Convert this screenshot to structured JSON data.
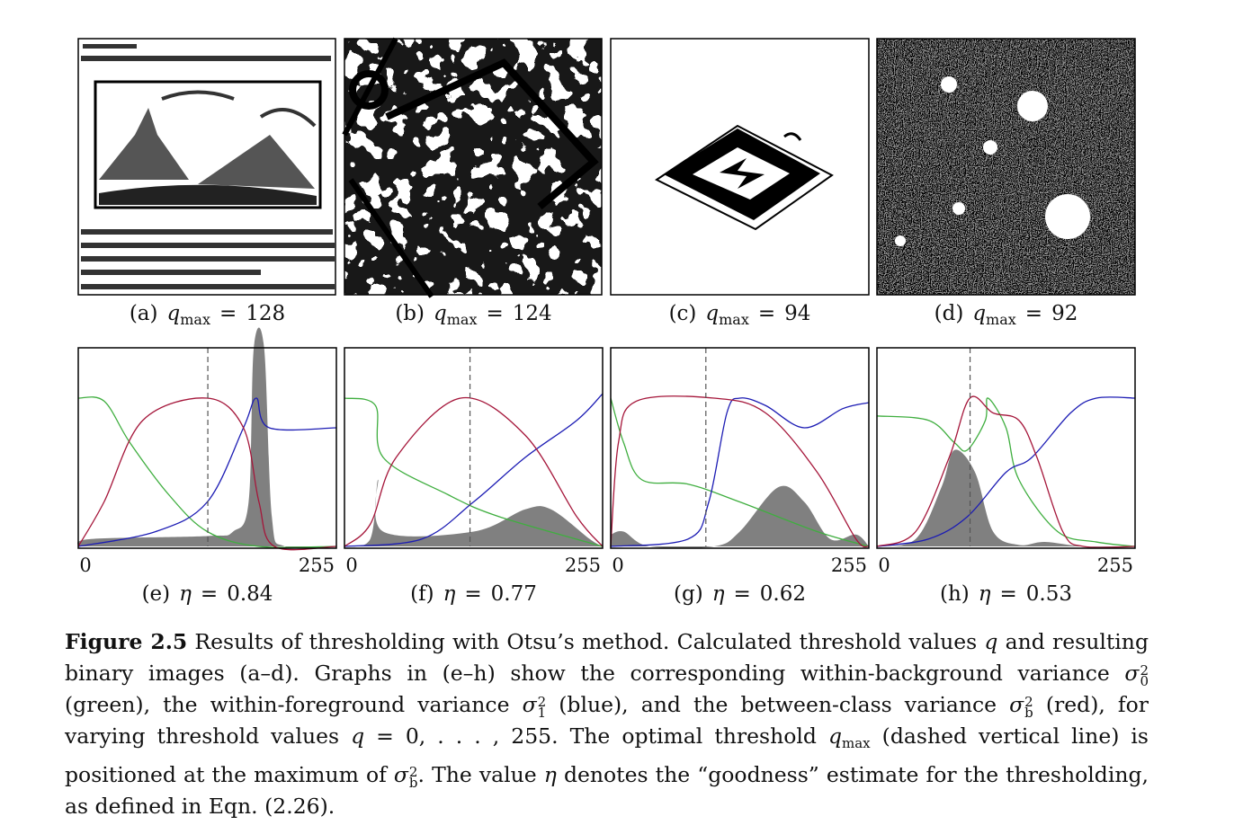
{
  "panels": [
    {
      "image_caption": {
        "label": "(a)",
        "symbol": "q",
        "subscript": "max",
        "relation": "=",
        "value": 128
      },
      "graph_caption": {
        "label": "(e)",
        "symbol": "η",
        "relation": "=",
        "value": 0.84
      },
      "x_min": 0,
      "x_max": 255
    },
    {
      "image_caption": {
        "label": "(b)",
        "symbol": "q",
        "subscript": "max",
        "relation": "=",
        "value": 124
      },
      "graph_caption": {
        "label": "(f)",
        "symbol": "η",
        "relation": "=",
        "value": 0.77
      },
      "x_min": 0,
      "x_max": 255
    },
    {
      "image_caption": {
        "label": "(c)",
        "symbol": "q",
        "subscript": "max",
        "relation": "=",
        "value": 94
      },
      "graph_caption": {
        "label": "(g)",
        "symbol": "η",
        "relation": "=",
        "value": 0.62
      },
      "x_min": 0,
      "x_max": 255
    },
    {
      "image_caption": {
        "label": "(d)",
        "symbol": "q",
        "subscript": "max",
        "relation": "=",
        "value": 92
      },
      "graph_caption": {
        "label": "(h)",
        "symbol": "η",
        "relation": "=",
        "value": 0.53
      },
      "x_min": 0,
      "x_max": 255
    }
  ],
  "caption": {
    "label": "Figure 2.5",
    "parts": [
      " Results of thresholding with Otsu’s method. Calculated threshold values ",
      "q",
      " and resulting binary images (a–d). Graphs in (e–h) show the corresponding within-background variance ",
      "σ",
      "2",
      "0",
      " (green), the within-foreground variance ",
      "σ",
      "2",
      "1",
      " (blue), and the between-class variance ",
      "σ",
      "2",
      "b",
      " (red), for varying threshold values ",
      "q",
      " = 0, . . . , 255. The optimal threshold ",
      "q",
      "max",
      " (dashed vertical line) is positioned at the maximum of ",
      "σ",
      "2",
      "b",
      ". The value ",
      "η",
      " denotes the “goodness” estimate for the thresholding, as defined in Eqn. (2.26)."
    ]
  }
}
